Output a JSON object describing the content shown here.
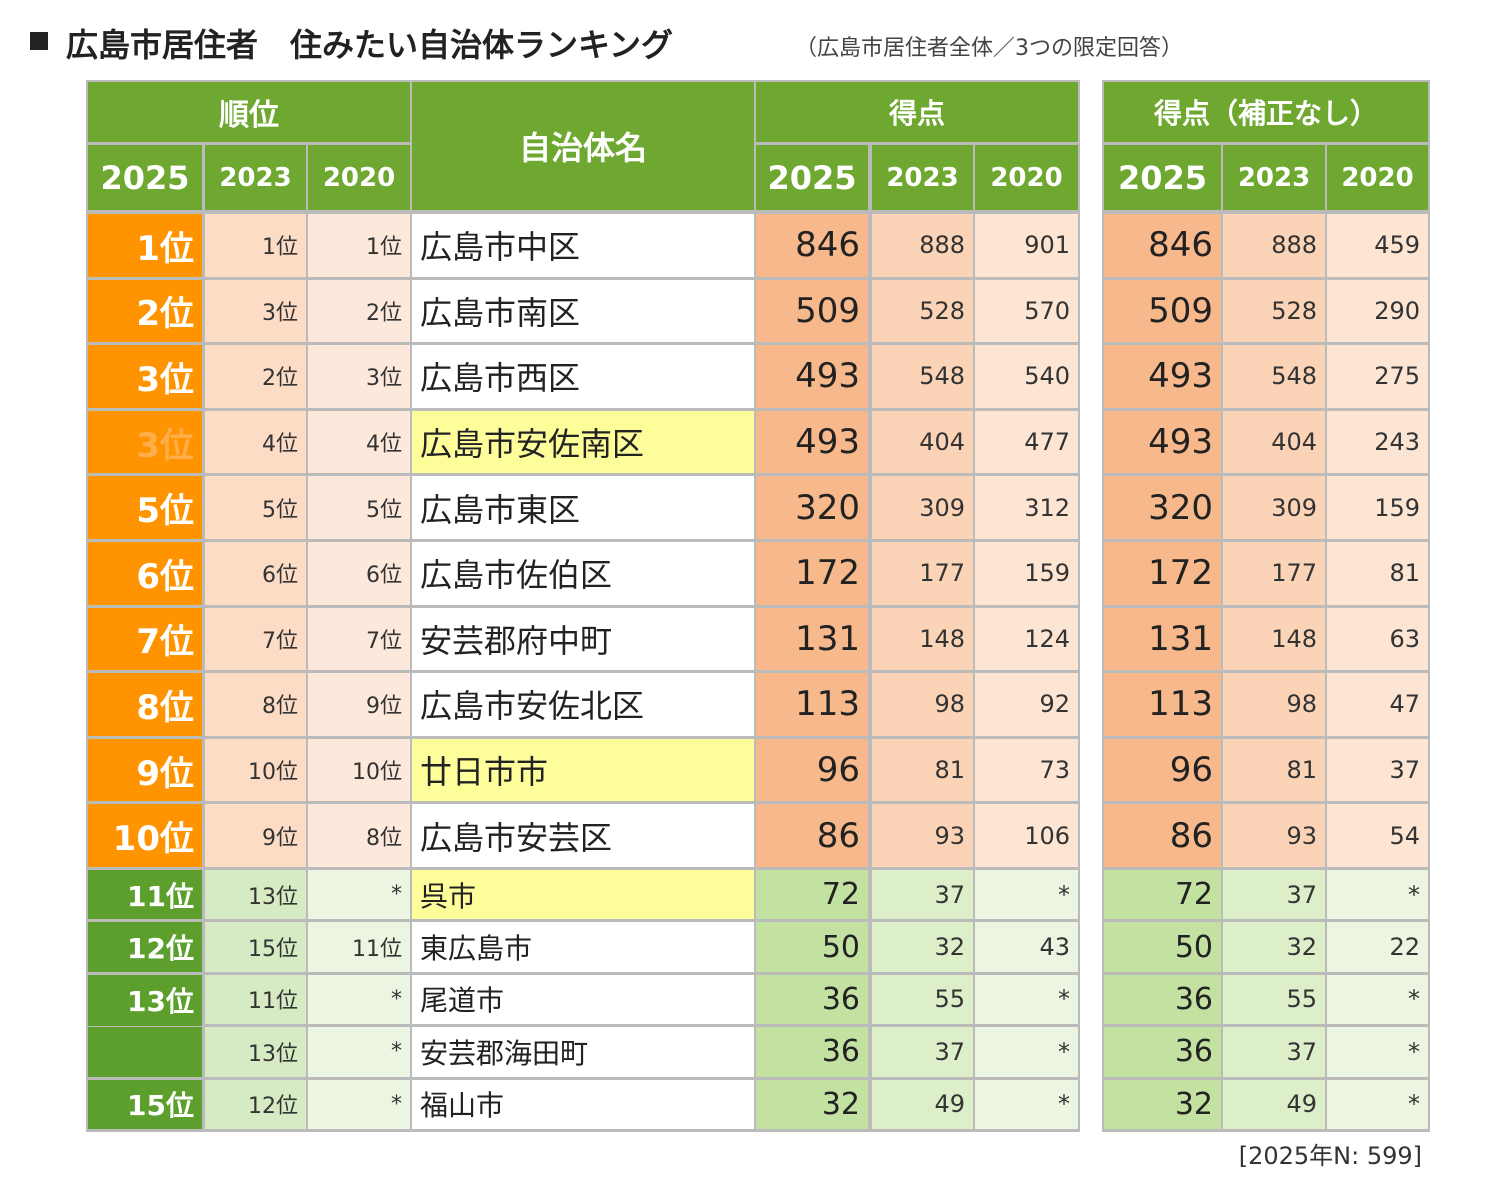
{
  "title": "広島市居住者　住みたい自治体ランキング",
  "subtitle": "（広島市居住者全体／3つの限定回答）",
  "header": {
    "rank": "順位",
    "name": "自治体名",
    "score": "得点",
    "score_raw": "得点（補正なし）",
    "years": [
      "2025",
      "2023",
      "2020"
    ]
  },
  "rows": [
    {
      "rank": [
        "1位",
        "1位",
        "1位"
      ],
      "name": "広島市中区",
      "score": [
        846,
        888,
        901
      ],
      "score_raw": [
        846,
        888,
        459
      ]
    },
    {
      "rank": [
        "2位",
        "3位",
        "2位"
      ],
      "name": "広島市南区",
      "score": [
        509,
        528,
        570
      ],
      "score_raw": [
        509,
        528,
        290
      ]
    },
    {
      "rank": [
        "3位",
        "2位",
        "3位"
      ],
      "name": "広島市西区",
      "score": [
        493,
        548,
        540
      ],
      "score_raw": [
        493,
        548,
        275
      ]
    },
    {
      "rank": [
        "3位",
        "4位",
        "4位"
      ],
      "name": "広島市安佐南区",
      "score": [
        493,
        404,
        477
      ],
      "score_raw": [
        493,
        404,
        243
      ],
      "highlight": true
    },
    {
      "rank": [
        "5位",
        "5位",
        "5位"
      ],
      "name": "広島市東区",
      "score": [
        320,
        309,
        312
      ],
      "score_raw": [
        320,
        309,
        159
      ]
    },
    {
      "rank": [
        "6位",
        "6位",
        "6位"
      ],
      "name": "広島市佐伯区",
      "score": [
        172,
        177,
        159
      ],
      "score_raw": [
        172,
        177,
        81
      ]
    },
    {
      "rank": [
        "7位",
        "7位",
        "7位"
      ],
      "name": "安芸郡府中町",
      "score": [
        131,
        148,
        124
      ],
      "score_raw": [
        131,
        148,
        63
      ]
    },
    {
      "rank": [
        "8位",
        "8位",
        "9位"
      ],
      "name": "広島市安佐北区",
      "score": [
        113,
        98,
        92
      ],
      "score_raw": [
        113,
        98,
        47
      ]
    },
    {
      "rank": [
        "9位",
        "10位",
        "10位"
      ],
      "name": "廿日市市",
      "score": [
        96,
        81,
        73
      ],
      "score_raw": [
        96,
        81,
        37
      ],
      "highlight": true
    },
    {
      "rank": [
        "10位",
        "9位",
        "8位"
      ],
      "name": "広島市安芸区",
      "score": [
        86,
        93,
        106
      ],
      "score_raw": [
        86,
        93,
        54
      ]
    },
    {
      "rank": [
        "11位",
        "13位",
        "*"
      ],
      "name": "呉市",
      "score": [
        72,
        37,
        "*"
      ],
      "score_raw": [
        72,
        37,
        "*"
      ],
      "highlight": true
    },
    {
      "rank": [
        "12位",
        "15位",
        "11位"
      ],
      "name": "東広島市",
      "score": [
        50,
        32,
        43
      ],
      "score_raw": [
        50,
        32,
        22
      ]
    },
    {
      "rank": [
        "13位",
        "11位",
        "*"
      ],
      "name": "尾道市",
      "score": [
        36,
        55,
        "*"
      ],
      "score_raw": [
        36,
        55,
        "*"
      ]
    },
    {
      "rank": [
        null,
        "13位",
        "*"
      ],
      "name": "安芸郡海田町",
      "score": [
        36,
        37,
        "*"
      ],
      "score_raw": [
        36,
        37,
        "*"
      ]
    },
    {
      "rank": [
        "15位",
        "12位",
        "*"
      ],
      "name": "福山市",
      "score": [
        32,
        49,
        "*"
      ],
      "score_raw": [
        32,
        49,
        "*"
      ]
    }
  ],
  "note": "[2025年N:  599]"
}
